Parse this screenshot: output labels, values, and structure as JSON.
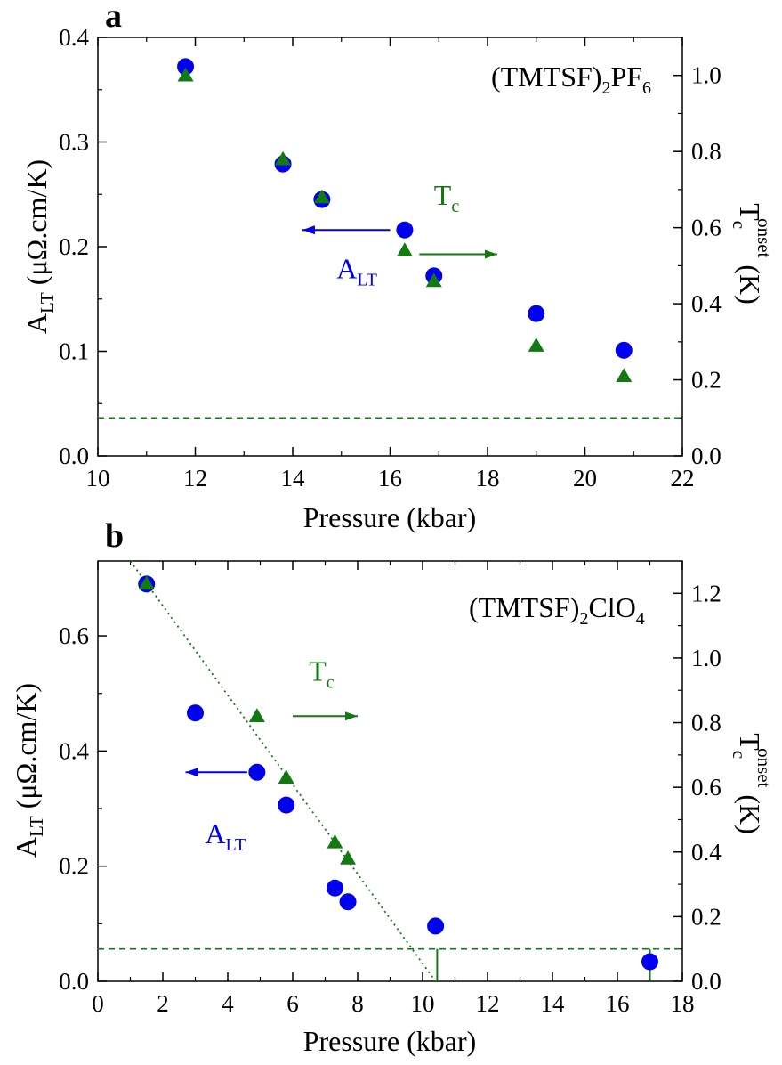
{
  "colors": {
    "blue": "#0000ee",
    "green": "#117a11",
    "axis": "#000000"
  },
  "chart_data": [
    {
      "panel_label": "a",
      "type": "scatter",
      "compound": {
        "main": "(TMTSF)",
        "sub1": "2",
        "mid": "PF",
        "sub2": "6"
      },
      "xlabel": "Pressure (kbar)",
      "ylabel_left": {
        "main": "A",
        "sub": "LT",
        "rest": " (μΩ.cm/K)"
      },
      "ylabel_right": {
        "main": "T",
        "sub": "c",
        "sup": "onset",
        "rest": " (K)"
      },
      "xlim": [
        10,
        22
      ],
      "ylim_left": [
        0,
        0.4
      ],
      "ylim_right": [
        0,
        1.1
      ],
      "xticks": [
        "10",
        "12",
        "14",
        "16",
        "18",
        "20",
        "22"
      ],
      "yticks_left": [
        "0.0",
        "0.1",
        "0.2",
        "0.3",
        "0.4"
      ],
      "yticks_right": [
        "0.0",
        "0.2",
        "0.4",
        "0.6",
        "0.8",
        "1.0"
      ],
      "series": [
        {
          "name": "A_LT",
          "axis": "left",
          "marker": "circle",
          "color": "#0000ee",
          "points": [
            [
              11.8,
              0.372
            ],
            [
              13.8,
              0.279
            ],
            [
              14.6,
              0.245
            ],
            [
              16.3,
              0.216
            ],
            [
              16.9,
              0.172
            ],
            [
              19.0,
              0.136
            ],
            [
              20.8,
              0.101
            ]
          ]
        },
        {
          "name": "T_c",
          "axis": "right",
          "marker": "triangle",
          "color": "#117a11",
          "points": [
            [
              11.8,
              1.0
            ],
            [
              13.8,
              0.78
            ],
            [
              14.6,
              0.68
            ],
            [
              16.3,
              0.54
            ],
            [
              16.9,
              0.46
            ],
            [
              19.0,
              0.29
            ],
            [
              20.8,
              0.21
            ]
          ]
        }
      ],
      "hline_right": 0.1,
      "annotations": {
        "tc_label": {
          "main": "T",
          "sub": "c"
        },
        "alt_label": {
          "main": "A",
          "sub": "LT"
        },
        "alt_arrow": {
          "from": [
            16.0,
            0.216
          ],
          "to": [
            14.2,
            0.216
          ]
        },
        "tc_arrow": {
          "from": [
            16.6,
            0.53
          ],
          "to": [
            18.2,
            0.53
          ]
        },
        "tc_label_at": [
          16.9,
          0.66
        ],
        "alt_label_at": [
          14.9,
          0.17
        ]
      }
    },
    {
      "panel_label": "b",
      "type": "scatter",
      "compound": {
        "main": "(TMTSF)",
        "sub1": "2",
        "mid": "ClO",
        "sub2": "4"
      },
      "xlabel": "Pressure (kbar)",
      "ylabel_left": {
        "main": "A",
        "sub": "LT",
        "rest": " (μΩ.cm/K)"
      },
      "ylabel_right": {
        "main": "T",
        "sub": "c",
        "sup": "onset",
        "rest": " (K)"
      },
      "xlim": [
        0,
        18
      ],
      "ylim_left": [
        0,
        0.73
      ],
      "ylim_right": [
        0,
        1.3
      ],
      "xticks": [
        "0",
        "2",
        "4",
        "6",
        "8",
        "10",
        "12",
        "14",
        "16",
        "18"
      ],
      "yticks_left": [
        "0.0",
        "0.2",
        "0.4",
        "0.6"
      ],
      "yticks_right": [
        "0.0",
        "0.2",
        "0.4",
        "0.6",
        "0.8",
        "1.0",
        "1.2"
      ],
      "series": [
        {
          "name": "A_LT",
          "axis": "left",
          "marker": "circle",
          "color": "#0000ee",
          "points": [
            [
              1.5,
              0.69
            ],
            [
              3.0,
              0.466
            ],
            [
              4.9,
              0.363
            ],
            [
              5.8,
              0.306
            ],
            [
              7.3,
              0.162
            ],
            [
              7.7,
              0.138
            ],
            [
              10.4,
              0.096
            ],
            [
              17.0,
              0.034
            ]
          ]
        },
        {
          "name": "T_c",
          "axis": "right",
          "marker": "triangle",
          "color": "#117a11",
          "points": [
            [
              1.5,
              1.23
            ],
            [
              4.9,
              0.82
            ],
            [
              5.8,
              0.63
            ],
            [
              7.3,
              0.43
            ],
            [
              7.7,
              0.38
            ]
          ]
        }
      ],
      "hline_right": 0.1,
      "dotted_line_right": {
        "from": [
          1.0,
          1.3
        ],
        "to": [
          10.4,
          0.0
        ]
      },
      "vertical_ticks_right": [
        [
          10.45,
          0.0,
          0.1
        ],
        [
          17.0,
          0.0,
          0.1
        ]
      ],
      "annotations": {
        "tc_label": {
          "main": "T",
          "sub": "c"
        },
        "alt_label": {
          "main": "A",
          "sub": "LT"
        },
        "alt_arrow": {
          "from": [
            4.6,
            0.363
          ],
          "to": [
            2.7,
            0.363
          ]
        },
        "tc_arrow": {
          "from": [
            6.0,
            0.82
          ],
          "to": [
            8.0,
            0.82
          ]
        },
        "tc_label_at": [
          6.5,
          0.93
        ],
        "alt_label_at": [
          3.3,
          0.24
        ]
      }
    }
  ]
}
